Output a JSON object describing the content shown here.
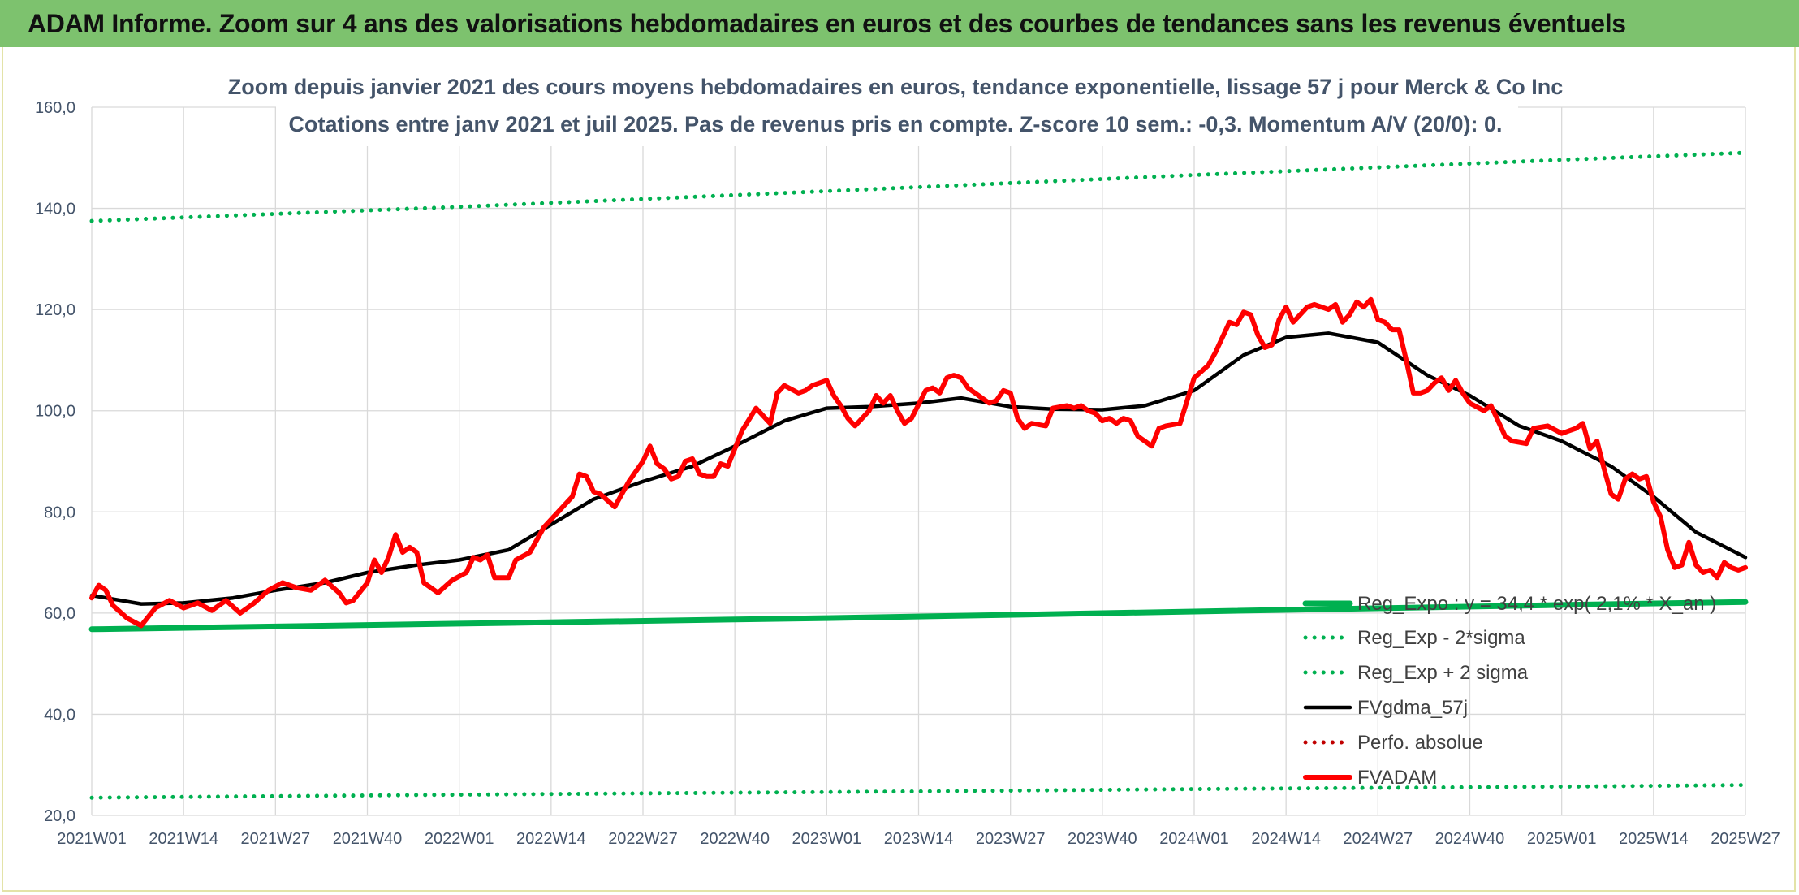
{
  "header": {
    "title": "ADAM Informe. Zoom sur 4 ans des valorisations hebdomadaires en euros et des courbes de tendances sans les revenus éventuels"
  },
  "colors": {
    "banner": "#7dc26e",
    "regression": "#00b050",
    "smoothed": "#000000",
    "price": "#ff0000",
    "perf": "#c00000",
    "grid": "#d9d9d9"
  },
  "chart_data": {
    "type": "line",
    "title": "Zoom depuis janvier 2021 des cours moyens hebdomadaires en euros, tendance exponentielle, lissage 57 j pour Merck & Co Inc",
    "subtitle": "Cotations entre janv 2021 et juil 2025. Pas de revenus pris en compte. Z-score 10 sem.: -0,3. Momentum A/V (20/0): 0.",
    "xlabel": "",
    "ylabel": "",
    "ylim": [
      20,
      160
    ],
    "yticks": [
      "20,0",
      "40,0",
      "60,0",
      "80,0",
      "100,0",
      "120,0",
      "140,0",
      "160,0"
    ],
    "x_tick_labels": [
      "2021W01",
      "2021W14",
      "2021W27",
      "2021W40",
      "2022W01",
      "2022W14",
      "2022W27",
      "2022W40",
      "2023W01",
      "2023W14",
      "2023W27",
      "2023W40",
      "2024W01",
      "2024W14",
      "2024W27",
      "2024W40",
      "2025W01",
      "2025W14",
      "2025W27"
    ],
    "grid": true,
    "legend_position": "bottom-right",
    "series": [
      {
        "name": "Reg_Expo : y = 34,4 * exp( 2,1% * X_an )",
        "style": "solid-thick",
        "color": "#00b050",
        "points": [
          [
            "2021W01",
            56.8
          ],
          [
            "2022W01",
            57.9
          ],
          [
            "2023W01",
            59.0
          ],
          [
            "2024W01",
            60.3
          ],
          [
            "2025W01",
            61.6
          ],
          [
            "2025W27",
            62.2
          ]
        ]
      },
      {
        "name": "Reg_Exp - 2*sigma",
        "style": "dotted",
        "color": "#00b050",
        "points": [
          [
            "2021W01",
            23.5
          ],
          [
            "2022W01",
            24.1
          ],
          [
            "2023W01",
            24.6
          ],
          [
            "2024W01",
            25.2
          ],
          [
            "2025W01",
            25.7
          ],
          [
            "2025W27",
            26.0
          ]
        ]
      },
      {
        "name": "Reg_Exp + 2 sigma",
        "style": "dotted",
        "color": "#00b050",
        "points": [
          [
            "2021W01",
            137.5
          ],
          [
            "2022W01",
            140.3
          ],
          [
            "2023W01",
            143.4
          ],
          [
            "2024W01",
            146.6
          ],
          [
            "2025W01",
            149.6
          ],
          [
            "2025W27",
            151.0
          ]
        ]
      },
      {
        "name": "FVgdma_57j",
        "style": "solid",
        "color": "#000000",
        "points": [
          [
            "2021W01",
            63.5
          ],
          [
            "2021W08",
            61.8
          ],
          [
            "2021W14",
            62.0
          ],
          [
            "2021W21",
            63.0
          ],
          [
            "2021W27",
            64.5
          ],
          [
            "2021W34",
            66.0
          ],
          [
            "2021W40",
            68.0
          ],
          [
            "2021W47",
            69.5
          ],
          [
            "2022W01",
            70.5
          ],
          [
            "2022W08",
            72.5
          ],
          [
            "2022W14",
            77.5
          ],
          [
            "2022W20",
            82.5
          ],
          [
            "2022W27",
            86.0
          ],
          [
            "2022W34",
            89.0
          ],
          [
            "2022W40",
            93.0
          ],
          [
            "2022W47",
            98.0
          ],
          [
            "2023W01",
            100.5
          ],
          [
            "2023W07",
            100.8
          ],
          [
            "2023W14",
            101.5
          ],
          [
            "2023W20",
            102.5
          ],
          [
            "2023W27",
            100.8
          ],
          [
            "2023W33",
            100.3
          ],
          [
            "2023W40",
            100.2
          ],
          [
            "2023W46",
            101.0
          ],
          [
            "2024W01",
            104.0
          ],
          [
            "2024W08",
            111.0
          ],
          [
            "2024W14",
            114.5
          ],
          [
            "2024W20",
            115.3
          ],
          [
            "2024W27",
            113.5
          ],
          [
            "2024W34",
            107.0
          ],
          [
            "2024W40",
            103.0
          ],
          [
            "2024W47",
            97.0
          ],
          [
            "2025W01",
            94.0
          ],
          [
            "2025W08",
            89.0
          ],
          [
            "2025W14",
            83.0
          ],
          [
            "2025W20",
            76.0
          ],
          [
            "2025W27",
            71.0
          ]
        ]
      },
      {
        "name": "Perfo. absolue",
        "style": "dotted",
        "color": "#c00000",
        "points": []
      },
      {
        "name": "FVADAM",
        "style": "solid-thick",
        "color": "#ff0000",
        "points": [
          [
            "2021W01",
            63.0
          ],
          [
            "2021W02",
            65.5
          ],
          [
            "2021W03",
            64.5
          ],
          [
            "2021W04",
            61.5
          ],
          [
            "2021W06",
            59.0
          ],
          [
            "2021W08",
            57.5
          ],
          [
            "2021W10",
            61.0
          ],
          [
            "2021W12",
            62.5
          ],
          [
            "2021W14",
            61.0
          ],
          [
            "2021W16",
            62.0
          ],
          [
            "2021W18",
            60.5
          ],
          [
            "2021W20",
            62.5
          ],
          [
            "2021W22",
            60.0
          ],
          [
            "2021W24",
            62.0
          ],
          [
            "2021W26",
            64.5
          ],
          [
            "2021W28",
            66.0
          ],
          [
            "2021W30",
            65.0
          ],
          [
            "2021W32",
            64.5
          ],
          [
            "2021W34",
            66.5
          ],
          [
            "2021W36",
            64.0
          ],
          [
            "2021W37",
            62.0
          ],
          [
            "2021W38",
            62.5
          ],
          [
            "2021W40",
            66.0
          ],
          [
            "2021W41",
            70.5
          ],
          [
            "2021W42",
            68.0
          ],
          [
            "2021W43",
            71.0
          ],
          [
            "2021W44",
            75.5
          ],
          [
            "2021W45",
            72.0
          ],
          [
            "2021W46",
            73.0
          ],
          [
            "2021W47",
            72.0
          ],
          [
            "2021W48",
            66.0
          ],
          [
            "2021W50",
            64.0
          ],
          [
            "2021W52",
            66.5
          ],
          [
            "2022W02",
            68.0
          ],
          [
            "2022W03",
            71.0
          ],
          [
            "2022W04",
            70.5
          ],
          [
            "2022W05",
            71.5
          ],
          [
            "2022W06",
            67.0
          ],
          [
            "2022W08",
            67.0
          ],
          [
            "2022W09",
            70.5
          ],
          [
            "2022W11",
            72.0
          ],
          [
            "2022W13",
            77.0
          ],
          [
            "2022W15",
            80.0
          ],
          [
            "2022W17",
            83.0
          ],
          [
            "2022W18",
            87.5
          ],
          [
            "2022W19",
            87.0
          ],
          [
            "2022W20",
            84.0
          ],
          [
            "2022W21",
            83.5
          ],
          [
            "2022W23",
            81.0
          ],
          [
            "2022W25",
            86.0
          ],
          [
            "2022W27",
            90.0
          ],
          [
            "2022W28",
            93.0
          ],
          [
            "2022W29",
            89.5
          ],
          [
            "2022W30",
            88.5
          ],
          [
            "2022W31",
            86.5
          ],
          [
            "2022W32",
            87.0
          ],
          [
            "2022W33",
            90.0
          ],
          [
            "2022W34",
            90.5
          ],
          [
            "2022W35",
            87.5
          ],
          [
            "2022W36",
            87.0
          ],
          [
            "2022W37",
            87.0
          ],
          [
            "2022W38",
            89.5
          ],
          [
            "2022W39",
            89.0
          ],
          [
            "2022W41",
            96.0
          ],
          [
            "2022W43",
            100.5
          ],
          [
            "2022W44",
            99.0
          ],
          [
            "2022W45",
            97.5
          ],
          [
            "2022W46",
            103.5
          ],
          [
            "2022W47",
            105.0
          ],
          [
            "2022W49",
            103.5
          ],
          [
            "2022W50",
            104.0
          ],
          [
            "2022W51",
            105.0
          ],
          [
            "2023W01",
            106.0
          ],
          [
            "2023W02",
            103.0
          ],
          [
            "2023W03",
            101.0
          ],
          [
            "2023W04",
            98.5
          ],
          [
            "2023W05",
            97.0
          ],
          [
            "2023W07",
            100.0
          ],
          [
            "2023W08",
            103.0
          ],
          [
            "2023W09",
            101.5
          ],
          [
            "2023W10",
            103.0
          ],
          [
            "2023W11",
            100.0
          ],
          [
            "2023W12",
            97.5
          ],
          [
            "2023W13",
            98.5
          ],
          [
            "2023W15",
            104.0
          ],
          [
            "2023W16",
            104.5
          ],
          [
            "2023W17",
            103.5
          ],
          [
            "2023W18",
            106.5
          ],
          [
            "2023W19",
            107.0
          ],
          [
            "2023W20",
            106.5
          ],
          [
            "2023W21",
            104.5
          ],
          [
            "2023W22",
            103.5
          ],
          [
            "2023W24",
            101.5
          ],
          [
            "2023W25",
            102.0
          ],
          [
            "2023W26",
            104.0
          ],
          [
            "2023W27",
            103.5
          ],
          [
            "2023W28",
            98.5
          ],
          [
            "2023W29",
            96.5
          ],
          [
            "2023W30",
            97.5
          ],
          [
            "2023W32",
            97.0
          ],
          [
            "2023W33",
            100.5
          ],
          [
            "2023W35",
            101.0
          ],
          [
            "2023W36",
            100.5
          ],
          [
            "2023W37",
            101.0
          ],
          [
            "2023W38",
            100.0
          ],
          [
            "2023W39",
            99.5
          ],
          [
            "2023W40",
            98.0
          ],
          [
            "2023W41",
            98.5
          ],
          [
            "2023W42",
            97.5
          ],
          [
            "2023W43",
            98.5
          ],
          [
            "2023W44",
            98.0
          ],
          [
            "2023W45",
            95.0
          ],
          [
            "2023W46",
            94.0
          ],
          [
            "2023W47",
            93.0
          ],
          [
            "2023W48",
            96.5
          ],
          [
            "2023W49",
            97.0
          ],
          [
            "2023W51",
            97.5
          ],
          [
            "2024W01",
            106.5
          ],
          [
            "2024W03",
            109.0
          ],
          [
            "2024W04",
            111.5
          ],
          [
            "2024W06",
            117.5
          ],
          [
            "2024W07",
            117.0
          ],
          [
            "2024W08",
            119.5
          ],
          [
            "2024W09",
            119.0
          ],
          [
            "2024W10",
            115.0
          ],
          [
            "2024W11",
            112.5
          ],
          [
            "2024W12",
            113.0
          ],
          [
            "2024W13",
            118.0
          ],
          [
            "2024W14",
            120.5
          ],
          [
            "2024W15",
            117.5
          ],
          [
            "2024W16",
            119.0
          ],
          [
            "2024W17",
            120.5
          ],
          [
            "2024W18",
            121.0
          ],
          [
            "2024W19",
            120.5
          ],
          [
            "2024W20",
            120.0
          ],
          [
            "2024W21",
            121.0
          ],
          [
            "2024W22",
            117.5
          ],
          [
            "2024W23",
            119.0
          ],
          [
            "2024W24",
            121.5
          ],
          [
            "2024W25",
            120.5
          ],
          [
            "2024W26",
            122.0
          ],
          [
            "2024W27",
            118.0
          ],
          [
            "2024W28",
            117.5
          ],
          [
            "2024W29",
            116.0
          ],
          [
            "2024W30",
            116.0
          ],
          [
            "2024W31",
            110.0
          ],
          [
            "2024W32",
            103.5
          ],
          [
            "2024W33",
            103.5
          ],
          [
            "2024W34",
            104.0
          ],
          [
            "2024W35",
            105.5
          ],
          [
            "2024W36",
            106.5
          ],
          [
            "2024W37",
            104.0
          ],
          [
            "2024W38",
            106.0
          ],
          [
            "2024W39",
            103.5
          ],
          [
            "2024W40",
            101.5
          ],
          [
            "2024W42",
            100.0
          ],
          [
            "2024W43",
            101.0
          ],
          [
            "2024W44",
            98.0
          ],
          [
            "2024W45",
            95.0
          ],
          [
            "2024W46",
            94.0
          ],
          [
            "2024W48",
            93.5
          ],
          [
            "2024W49",
            96.5
          ],
          [
            "2024W51",
            97.0
          ],
          [
            "2025W01",
            95.5
          ],
          [
            "2025W02",
            96.0
          ],
          [
            "2025W03",
            96.5
          ],
          [
            "2025W04",
            97.5
          ],
          [
            "2025W05",
            92.5
          ],
          [
            "2025W06",
            94.0
          ],
          [
            "2025W07",
            88.5
          ],
          [
            "2025W08",
            83.5
          ],
          [
            "2025W09",
            82.5
          ],
          [
            "2025W10",
            86.5
          ],
          [
            "2025W11",
            87.5
          ],
          [
            "2025W12",
            86.5
          ],
          [
            "2025W13",
            87.0
          ],
          [
            "2025W14",
            82.0
          ],
          [
            "2025W15",
            79.0
          ],
          [
            "2025W16",
            72.5
          ],
          [
            "2025W17",
            69.0
          ],
          [
            "2025W18",
            69.5
          ],
          [
            "2025W19",
            74.0
          ],
          [
            "2025W20",
            69.5
          ],
          [
            "2025W21",
            68.0
          ],
          [
            "2025W22",
            68.5
          ],
          [
            "2025W23",
            67.0
          ],
          [
            "2025W24",
            70.0
          ],
          [
            "2025W25",
            69.0
          ],
          [
            "2025W26",
            68.5
          ],
          [
            "2025W27",
            69.0
          ]
        ]
      }
    ]
  }
}
